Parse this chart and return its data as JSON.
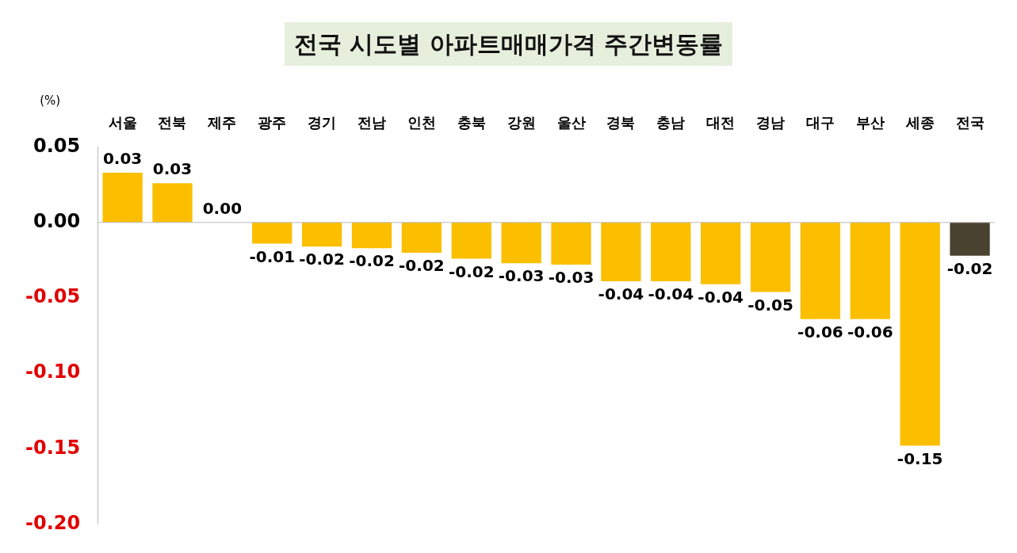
{
  "chart_data": {
    "type": "bar",
    "title": "전국 시도별 아파트매매가격 주간변동률",
    "ylabel": "(%)",
    "categories": [
      "서울",
      "전북",
      "제주",
      "광주",
      "경기",
      "전남",
      "인천",
      "충북",
      "강원",
      "울산",
      "경북",
      "충남",
      "대전",
      "경남",
      "대구",
      "부산",
      "세종",
      "전국"
    ],
    "values": [
      0.033,
      0.026,
      0.0,
      -0.014,
      -0.016,
      -0.017,
      -0.02,
      -0.024,
      -0.027,
      -0.028,
      -0.039,
      -0.039,
      -0.041,
      -0.046,
      -0.064,
      -0.064,
      -0.148,
      -0.022
    ],
    "colors": [
      "#fbbf00",
      "#fbbf00",
      "#fbbf00",
      "#fbbf00",
      "#fbbf00",
      "#fbbf00",
      "#fbbf00",
      "#fbbf00",
      "#fbbf00",
      "#fbbf00",
      "#fbbf00",
      "#fbbf00",
      "#fbbf00",
      "#fbbf00",
      "#fbbf00",
      "#fbbf00",
      "#fbbf00",
      "#4a4230"
    ],
    "value_labels": [
      "0.03",
      "0.03",
      "0.00",
      "-0.01",
      "-0.02",
      "-0.02",
      "-0.02",
      "-0.02",
      "-0.03",
      "-0.03",
      "-0.04",
      "-0.04",
      "-0.04",
      "-0.05",
      "-0.06",
      "-0.06",
      "-0.15",
      "-0.02"
    ],
    "ylim": [
      -0.2,
      0.05
    ],
    "yticks": [
      0.05,
      {
        "value": 0,
        "label": "0.00"
      },
      -0.05,
      {
        "value": -0.1,
        "label": "-0.10"
      },
      -0.15,
      {
        "value": -0.2,
        "label": "-0.20"
      }
    ],
    "ref_lines": [
      {
        "axis": "y",
        "value": 0,
        "color": "#bbbbbb"
      }
    ],
    "grid": false,
    "legend": false
  }
}
